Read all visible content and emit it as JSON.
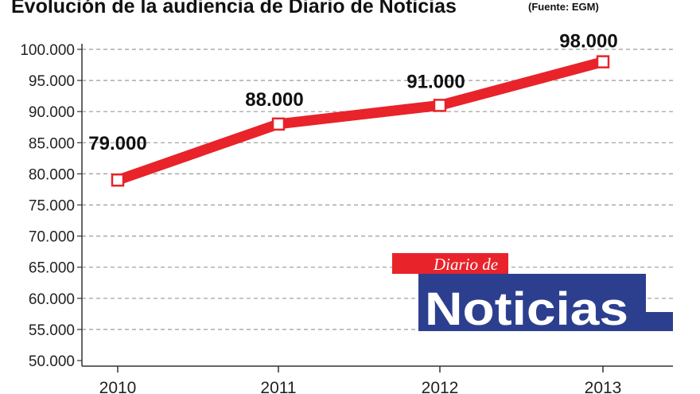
{
  "chart_data": {
    "type": "line",
    "title": "Evolución de la audiencia de Diario de Noticias",
    "source": "(Fuente: EGM)",
    "categories": [
      "2010",
      "2011",
      "2012",
      "2013"
    ],
    "series": [
      {
        "values": [
          79000,
          88000,
          91000,
          98000
        ],
        "labels": [
          "79.000",
          "88.000",
          "91.000",
          "98.000"
        ]
      }
    ],
    "y_ticks": [
      {
        "value": 100000,
        "label": "100.000"
      },
      {
        "value": 95000,
        "label": "95.000"
      },
      {
        "value": 90000,
        "label": "90.000"
      },
      {
        "value": 85000,
        "label": "85.000"
      },
      {
        "value": 80000,
        "label": "80.000"
      },
      {
        "value": 75000,
        "label": "75.000"
      },
      {
        "value": 70000,
        "label": "70.000"
      },
      {
        "value": 65000,
        "label": "65.000"
      },
      {
        "value": 60000,
        "label": "60.000"
      },
      {
        "value": 55000,
        "label": "55.000"
      },
      {
        "value": 50000,
        "label": "50.000"
      }
    ],
    "ylim": [
      50000,
      100000
    ],
    "grid": true,
    "colors": {
      "line": "#e8232a",
      "grid": "#9a9a9a",
      "axis": "#333333"
    }
  },
  "logo": {
    "top_text": "Diario de",
    "main_text": "Noticias",
    "colors": {
      "red": "#e8232a",
      "blue": "#2c3f8f"
    }
  }
}
